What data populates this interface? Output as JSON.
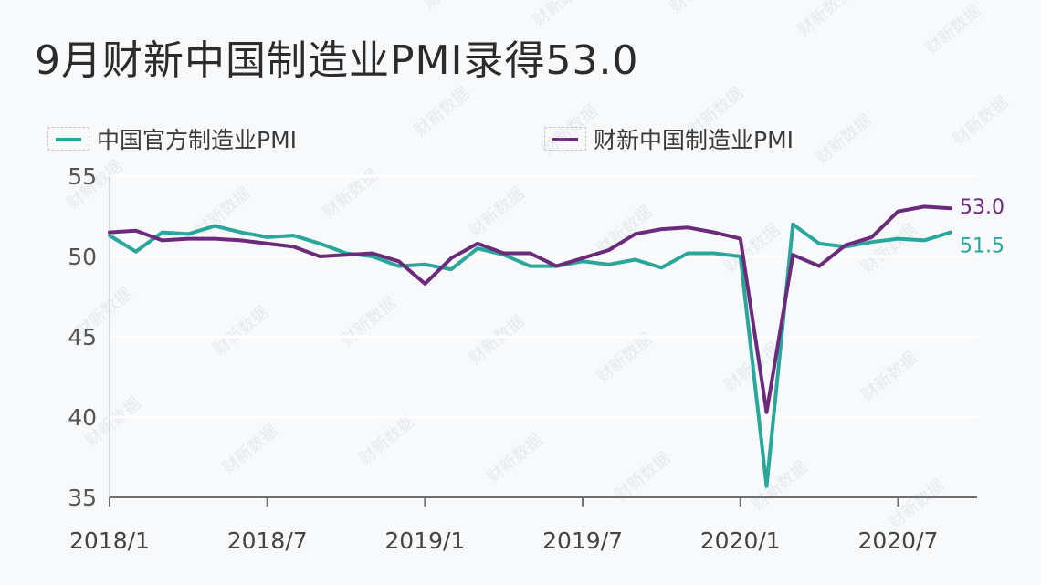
{
  "title": "9月财新中国制造业PMI录得53.0",
  "legend": [
    {
      "label": "中国官方制造业PMI",
      "color": "#2aa79b"
    },
    {
      "label": "财新中国制造业PMI",
      "color": "#6b2a7a"
    }
  ],
  "watermark": "财新数据",
  "chart_data": {
    "type": "line",
    "title": "9月财新中国制造业PMI录得53.0",
    "x": [
      "2018/1",
      "2018/2",
      "2018/3",
      "2018/4",
      "2018/5",
      "2018/6",
      "2018/7",
      "2018/8",
      "2018/9",
      "2018/10",
      "2018/11",
      "2018/12",
      "2019/1",
      "2019/2",
      "2019/3",
      "2019/4",
      "2019/5",
      "2019/6",
      "2019/7",
      "2019/8",
      "2019/9",
      "2019/10",
      "2019/11",
      "2019/12",
      "2020/1",
      "2020/2",
      "2020/3",
      "2020/4",
      "2020/5",
      "2020/6",
      "2020/7",
      "2020/8",
      "2020/9"
    ],
    "xticks": [
      "2018/1",
      "2018/7",
      "2019/1",
      "2019/7",
      "2020/1",
      "2020/7"
    ],
    "yticks": [
      55,
      50,
      45,
      40,
      35
    ],
    "ylim": [
      35,
      55
    ],
    "grid": true,
    "legend_position": "top",
    "series": [
      {
        "name": "中国官方制造业PMI",
        "color": "#2aa79b",
        "values": [
          51.3,
          50.3,
          51.5,
          51.4,
          51.9,
          51.5,
          51.2,
          51.3,
          50.8,
          50.2,
          50.0,
          49.4,
          49.5,
          49.2,
          50.5,
          50.1,
          49.4,
          49.4,
          49.7,
          49.5,
          49.8,
          49.3,
          50.2,
          50.2,
          50.0,
          35.7,
          52.0,
          50.8,
          50.6,
          50.9,
          51.1,
          51.0,
          51.5
        ]
      },
      {
        "name": "财新中国制造业PMI",
        "color": "#6b2a7a",
        "values": [
          51.5,
          51.6,
          51.0,
          51.1,
          51.1,
          51.0,
          50.8,
          50.6,
          50.0,
          50.1,
          50.2,
          49.7,
          48.3,
          49.9,
          50.8,
          50.2,
          50.2,
          49.4,
          49.9,
          50.4,
          51.4,
          51.7,
          51.8,
          51.5,
          51.1,
          40.3,
          50.1,
          49.4,
          50.7,
          51.2,
          52.8,
          53.1,
          53.0
        ]
      }
    ],
    "end_labels": [
      "51.5",
      "53.0"
    ]
  }
}
